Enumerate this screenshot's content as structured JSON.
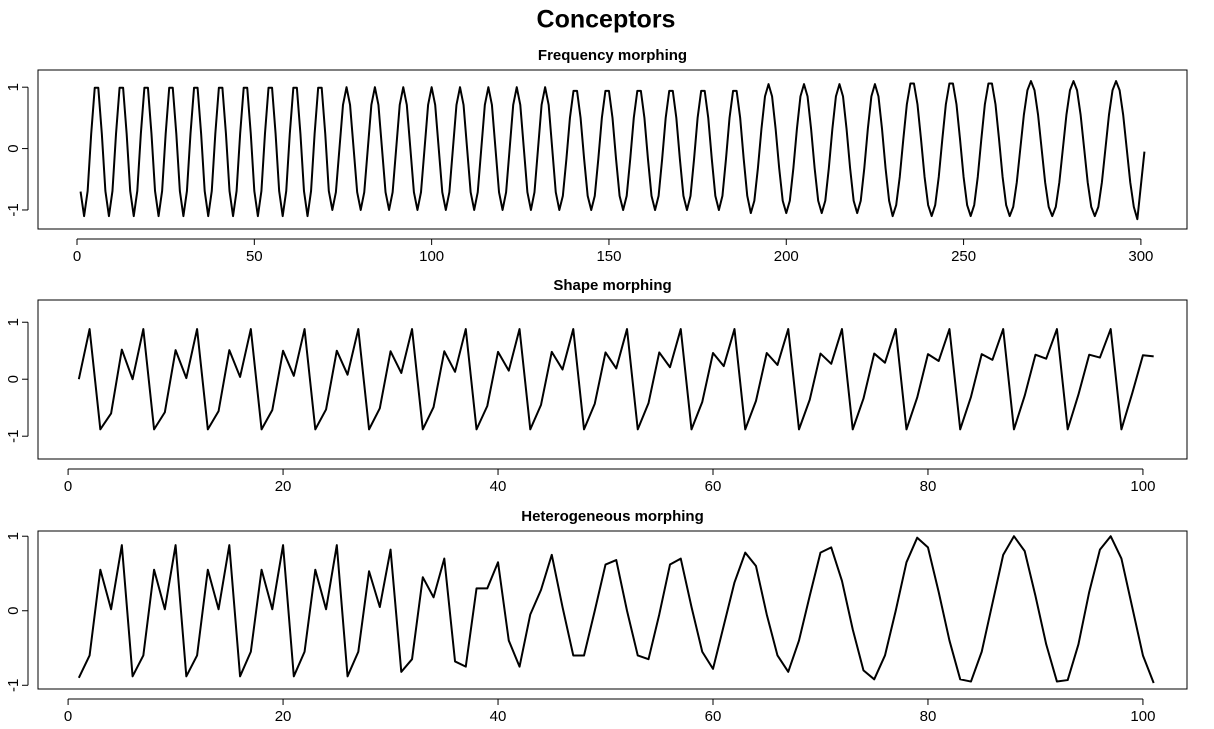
{
  "title": "Conceptors",
  "chart_data": [
    {
      "type": "line",
      "title": "Frequency morphing",
      "color": "#000000",
      "x": [
        1,
        2,
        3,
        4,
        5,
        6,
        7,
        8,
        9,
        10,
        11,
        12,
        13,
        14,
        15,
        16,
        17,
        18,
        19,
        20,
        21,
        22,
        23,
        24,
        25,
        26,
        27,
        28,
        29,
        30,
        31,
        32,
        33,
        34,
        35,
        36,
        37,
        38,
        39,
        40,
        41,
        42,
        43,
        44,
        45,
        46,
        47,
        48,
        49,
        50,
        51,
        52,
        53,
        54,
        55,
        56,
        57,
        58,
        59,
        60,
        61,
        62,
        63,
        64,
        65,
        66,
        67,
        68,
        69,
        70,
        71,
        72,
        73,
        74,
        75,
        76,
        77,
        78,
        79,
        80,
        81,
        82,
        83,
        84,
        85,
        86,
        87,
        88,
        89,
        90,
        91,
        92,
        93,
        94,
        95,
        96,
        97,
        98,
        99,
        100,
        101,
        102,
        103,
        104,
        105,
        106,
        107,
        108,
        109,
        110,
        111,
        112,
        113,
        114,
        115,
        116,
        117,
        118,
        119,
        120,
        121,
        122,
        123,
        124,
        125,
        126,
        127,
        128,
        129,
        130,
        131,
        132,
        133,
        134,
        135,
        136,
        137,
        138,
        139,
        140,
        141,
        142,
        143,
        144,
        145,
        146,
        147,
        148,
        149,
        150,
        151,
        152,
        153,
        154,
        155,
        156,
        157,
        158,
        159,
        160,
        161,
        162,
        163,
        164,
        165,
        166,
        167,
        168,
        169,
        170,
        171,
        172,
        173,
        174,
        175,
        176,
        177,
        178,
        179,
        180,
        181,
        182,
        183,
        184,
        185,
        186,
        187,
        188,
        189,
        190,
        191,
        192,
        193,
        194,
        195,
        196,
        197,
        198,
        199,
        200,
        201,
        202,
        203,
        204,
        205,
        206,
        207,
        208,
        209,
        210,
        211,
        212,
        213,
        214,
        215,
        216,
        217,
        218,
        219,
        220,
        221,
        222,
        223,
        224,
        225,
        226,
        227,
        228,
        229,
        230,
        231,
        232,
        233,
        234,
        235,
        236,
        237,
        238,
        239,
        240,
        241,
        242,
        243,
        244,
        245,
        246,
        247,
        248,
        249,
        250,
        251,
        252,
        253,
        254,
        255,
        256,
        257,
        258,
        259,
        260,
        261,
        262,
        263,
        264,
        265,
        266,
        267,
        268,
        269,
        270,
        271,
        272,
        273,
        274,
        275,
        276,
        277,
        278,
        279,
        280,
        281,
        282,
        283,
        284,
        285,
        286,
        287,
        288,
        289,
        290,
        291,
        292,
        293,
        294,
        295,
        296,
        297,
        298,
        299,
        300,
        301
      ],
      "values": [
        -0.7,
        -1.1,
        -0.69,
        0.24,
        0.99,
        0.99,
        0.24,
        -0.69,
        -1.1,
        -0.69,
        0.24,
        0.99,
        0.99,
        0.24,
        -0.69,
        -1.1,
        -0.69,
        0.24,
        0.99,
        0.99,
        0.24,
        -0.69,
        -1.1,
        -0.69,
        0.24,
        0.99,
        0.99,
        0.24,
        -0.69,
        -1.1,
        -0.69,
        0.24,
        0.99,
        0.99,
        0.24,
        -0.69,
        -1.1,
        -0.69,
        0.24,
        0.99,
        0.99,
        0.24,
        -0.69,
        -1.1,
        -0.69,
        0.24,
        0.99,
        0.99,
        0.24,
        -0.69,
        -1.1,
        -0.69,
        0.24,
        0.99,
        0.99,
        0.24,
        -0.69,
        -1.1,
        -0.69,
        0.24,
        0.99,
        0.99,
        0.24,
        -0.69,
        -1.1,
        -0.69,
        0.24,
        0.99,
        0.99,
        0.24,
        -0.69,
        -1,
        -0.71,
        0,
        0.71,
        1,
        0.71,
        0,
        -0.71,
        -1,
        -0.71,
        0,
        0.71,
        1,
        0.71,
        0,
        -0.71,
        -1,
        -0.71,
        0,
        0.71,
        1,
        0.71,
        0,
        -0.71,
        -1,
        -0.71,
        0,
        0.71,
        1,
        0.71,
        0,
        -0.71,
        -1,
        -0.71,
        0,
        0.71,
        1,
        0.71,
        0,
        -0.71,
        -1,
        -0.71,
        0,
        0.71,
        1,
        0.71,
        0,
        -0.71,
        -1,
        -0.71,
        0,
        0.71,
        1,
        0.71,
        0,
        -0.71,
        -1,
        -0.71,
        0,
        0.71,
        1,
        0.71,
        0,
        -0.71,
        -1,
        -0.77,
        -0.17,
        0.5,
        0.94,
        0.94,
        0.5,
        -0.17,
        -0.77,
        -1,
        -0.77,
        -0.17,
        0.5,
        0.94,
        0.94,
        0.5,
        -0.17,
        -0.77,
        -1,
        -0.77,
        -0.17,
        0.5,
        0.94,
        0.94,
        0.5,
        -0.17,
        -0.77,
        -1,
        -0.77,
        -0.17,
        0.5,
        0.94,
        0.94,
        0.5,
        -0.17,
        -0.77,
        -1,
        -0.77,
        -0.17,
        0.5,
        0.94,
        0.94,
        0.5,
        -0.17,
        -0.77,
        -1,
        -0.77,
        -0.17,
        0.5,
        0.94,
        0.94,
        0.5,
        -0.17,
        -0.77,
        -1.05,
        -0.85,
        -0.32,
        0.32,
        0.85,
        1.05,
        0.85,
        0.32,
        -0.32,
        -0.85,
        -1.05,
        -0.85,
        -0.32,
        0.32,
        0.85,
        1.05,
        0.85,
        0.32,
        -0.32,
        -0.85,
        -1.05,
        -0.85,
        -0.32,
        0.32,
        0.85,
        1.05,
        0.85,
        0.32,
        -0.32,
        -0.85,
        -1.05,
        -0.85,
        -0.32,
        0.32,
        0.85,
        1.05,
        0.85,
        0.32,
        -0.32,
        -0.85,
        -1.1,
        -0.92,
        -0.46,
        0.15,
        0.72,
        1.06,
        1.06,
        0.72,
        0.15,
        -0.46,
        -0.92,
        -1.1,
        -0.92,
        -0.46,
        0.15,
        0.72,
        1.06,
        1.06,
        0.72,
        0.15,
        -0.46,
        -0.92,
        -1.1,
        -0.92,
        -0.46,
        0.15,
        0.72,
        1.06,
        1.06,
        0.72,
        0.15,
        -0.46,
        -0.92,
        -1.1,
        -0.95,
        -0.55,
        0,
        0.55,
        0.95,
        1.1,
        0.95,
        0.55,
        0,
        -0.55,
        -0.95,
        -1.1,
        -0.95,
        -0.55,
        0,
        0.55,
        0.95,
        1.1,
        0.95,
        0.55,
        0,
        -0.55,
        -0.95,
        -1.1,
        -0.95,
        -0.55,
        0,
        0.55,
        0.95,
        1.1,
        0.95,
        0.55,
        0,
        -0.55,
        -0.95,
        -1.15,
        -0.6,
        -0.05
      ],
      "xlim": [
        -11,
        313
      ],
      "xticks": [
        0,
        50,
        100,
        150,
        200,
        250,
        300
      ],
      "ylim": [
        -1.31,
        1.28
      ],
      "yticks": [
        -1,
        0,
        1
      ]
    },
    {
      "type": "line",
      "title": "Shape morphing",
      "color": "#000000",
      "x": [
        1,
        2,
        3,
        4,
        5,
        6,
        7,
        8,
        9,
        10,
        11,
        12,
        13,
        14,
        15,
        16,
        17,
        18,
        19,
        20,
        21,
        22,
        23,
        24,
        25,
        26,
        27,
        28,
        29,
        30,
        31,
        32,
        33,
        34,
        35,
        36,
        37,
        38,
        39,
        40,
        41,
        42,
        43,
        44,
        45,
        46,
        47,
        48,
        49,
        50,
        51,
        52,
        53,
        54,
        55,
        56,
        57,
        58,
        59,
        60,
        61,
        62,
        63,
        64,
        65,
        66,
        67,
        68,
        69,
        70,
        71,
        72,
        73,
        74,
        75,
        76,
        77,
        78,
        79,
        80,
        81,
        82,
        83,
        84,
        85,
        86,
        87,
        88,
        89,
        90,
        91,
        92,
        93,
        94,
        95,
        96,
        97,
        98,
        99,
        100,
        101
      ],
      "values": [
        0,
        0.88,
        -0.88,
        -0.6,
        0.52,
        0,
        0.88,
        -0.88,
        -0.58,
        0.51,
        0.02,
        0.88,
        -0.88,
        -0.56,
        0.51,
        0.04,
        0.88,
        -0.88,
        -0.54,
        0.5,
        0.06,
        0.88,
        -0.88,
        -0.53,
        0.5,
        0.08,
        0.88,
        -0.88,
        -0.51,
        0.49,
        0.11,
        0.88,
        -0.88,
        -0.49,
        0.49,
        0.13,
        0.88,
        -0.88,
        -0.47,
        0.48,
        0.15,
        0.88,
        -0.88,
        -0.45,
        0.48,
        0.17,
        0.88,
        -0.88,
        -0.43,
        0.47,
        0.19,
        0.88,
        -0.88,
        -0.42,
        0.47,
        0.21,
        0.88,
        -0.88,
        -0.4,
        0.46,
        0.23,
        0.88,
        -0.88,
        -0.38,
        0.46,
        0.25,
        0.88,
        -0.88,
        -0.36,
        0.45,
        0.27,
        0.88,
        -0.88,
        -0.34,
        0.45,
        0.29,
        0.88,
        -0.88,
        -0.32,
        0.44,
        0.32,
        0.88,
        -0.88,
        -0.31,
        0.44,
        0.34,
        0.88,
        -0.88,
        -0.29,
        0.43,
        0.36,
        0.88,
        -0.88,
        -0.27,
        0.43,
        0.38,
        0.88,
        -0.88,
        -0.25,
        0.42,
        0.4
      ],
      "xlim": [
        -2.8,
        104.1
      ],
      "xticks": [
        0,
        20,
        40,
        60,
        80,
        100
      ],
      "ylim": [
        -1.4,
        1.39
      ],
      "yticks": [
        -1,
        0,
        1
      ]
    },
    {
      "type": "line",
      "title": "Heterogeneous morphing",
      "color": "#000000",
      "x": [
        1,
        2,
        3,
        4,
        5,
        6,
        7,
        8,
        9,
        10,
        11,
        12,
        13,
        14,
        15,
        16,
        17,
        18,
        19,
        20,
        21,
        22,
        23,
        24,
        25,
        26,
        27,
        28,
        29,
        30,
        31,
        32,
        33,
        34,
        35,
        36,
        37,
        38,
        39,
        40,
        41,
        42,
        43,
        44,
        45,
        46,
        47,
        48,
        49,
        50,
        51,
        52,
        53,
        54,
        55,
        56,
        57,
        58,
        59,
        60,
        61,
        62,
        63,
        64,
        65,
        66,
        67,
        68,
        69,
        70,
        71,
        72,
        73,
        74,
        75,
        76,
        77,
        78,
        79,
        80,
        81,
        82,
        83,
        84,
        85,
        86,
        87,
        88,
        89,
        90,
        91,
        92,
        93,
        94,
        95,
        96,
        97,
        98,
        99,
        100,
        101
      ],
      "values": [
        -0.9,
        -0.6,
        0.55,
        0.02,
        0.88,
        -0.88,
        -0.6,
        0.55,
        0.02,
        0.88,
        -0.88,
        -0.6,
        0.55,
        0.02,
        0.88,
        -0.88,
        -0.55,
        0.55,
        0.02,
        0.88,
        -0.88,
        -0.55,
        0.55,
        0.02,
        0.88,
        -0.88,
        -0.55,
        0.53,
        0.05,
        0.82,
        -0.82,
        -0.65,
        0.45,
        0.18,
        0.7,
        -0.68,
        -0.75,
        0.3,
        0.3,
        0.65,
        -0.4,
        -0.75,
        -0.05,
        0.28,
        0.75,
        0.05,
        -0.6,
        -0.6,
        0,
        0.62,
        0.68,
        0,
        -0.6,
        -0.65,
        -0.05,
        0.62,
        0.7,
        0.05,
        -0.55,
        -0.78,
        -0.2,
        0.38,
        0.78,
        0.6,
        -0.05,
        -0.6,
        -0.82,
        -0.4,
        0.2,
        0.78,
        0.85,
        0.4,
        -0.25,
        -0.8,
        -0.92,
        -0.6,
        0,
        0.65,
        0.98,
        0.85,
        0.25,
        -0.4,
        -0.92,
        -0.95,
        -0.55,
        0.1,
        0.75,
        1,
        0.8,
        0.2,
        -0.45,
        -0.95,
        -0.93,
        -0.45,
        0.25,
        0.82,
        1,
        0.7,
        0.05,
        -0.6,
        -0.97
      ],
      "xlim": [
        -2.8,
        104.1
      ],
      "xticks": [
        0,
        20,
        40,
        60,
        80,
        100
      ],
      "ylim": [
        -1.05,
        1.07
      ],
      "yticks": [
        -1,
        0,
        1
      ]
    }
  ]
}
